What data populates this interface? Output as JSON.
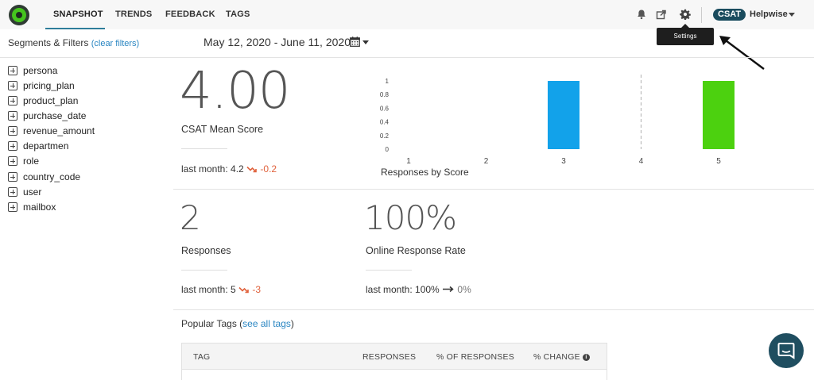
{
  "nav": {
    "tabs": [
      {
        "label": "SNAPSHOT",
        "active": true
      },
      {
        "label": "TRENDS"
      },
      {
        "label": "FEEDBACK"
      },
      {
        "label": "TAGS"
      }
    ],
    "survey_badge": "CSAT",
    "app_name": "Helpwise",
    "tooltip": "Settings",
    "icons": [
      "bell-icon",
      "share-icon",
      "gear-icon"
    ]
  },
  "filters": {
    "title": "Segments & Filters",
    "clear_link": "(clear filters)",
    "date_range": "May 12, 2020 - June 11, 2020",
    "segments": [
      "persona",
      "pricing_plan",
      "product_plan",
      "purchase_date",
      "revenue_amount",
      "departmen",
      "role",
      "country_code",
      "user",
      "mailbox"
    ]
  },
  "metrics": {
    "mean_score": {
      "value": "4.00",
      "label": "CSAT Mean Score",
      "last_month_prefix": "last month: 4.2",
      "change": "-0.2"
    },
    "responses": {
      "value": "2",
      "label": "Responses",
      "last_month_prefix": "last month: 5",
      "change": "-3"
    },
    "response_rate": {
      "value": "100%",
      "label": "Online Response Rate",
      "last_month_prefix": "last month: 100%",
      "change": "0%"
    }
  },
  "chart_data": {
    "type": "bar",
    "title": "Responses by Score",
    "categories": [
      "1",
      "2",
      "3",
      "4",
      "5"
    ],
    "values": [
      0,
      0,
      1,
      0,
      1
    ],
    "yticks": [
      "0",
      "0.2",
      "0.4",
      "0.6",
      "0.8",
      "1"
    ],
    "ylim": [
      0,
      1
    ],
    "colors": [
      "#1ea0e6",
      "#1ea0e6",
      "#12a2ea",
      "#999999",
      "#4cd10f"
    ]
  },
  "tags": {
    "title": "Popular Tags",
    "see_all": "see all tags",
    "columns": [
      "TAG",
      "RESPONSES",
      "% OF RESPONSES",
      "% CHANGE"
    ]
  }
}
